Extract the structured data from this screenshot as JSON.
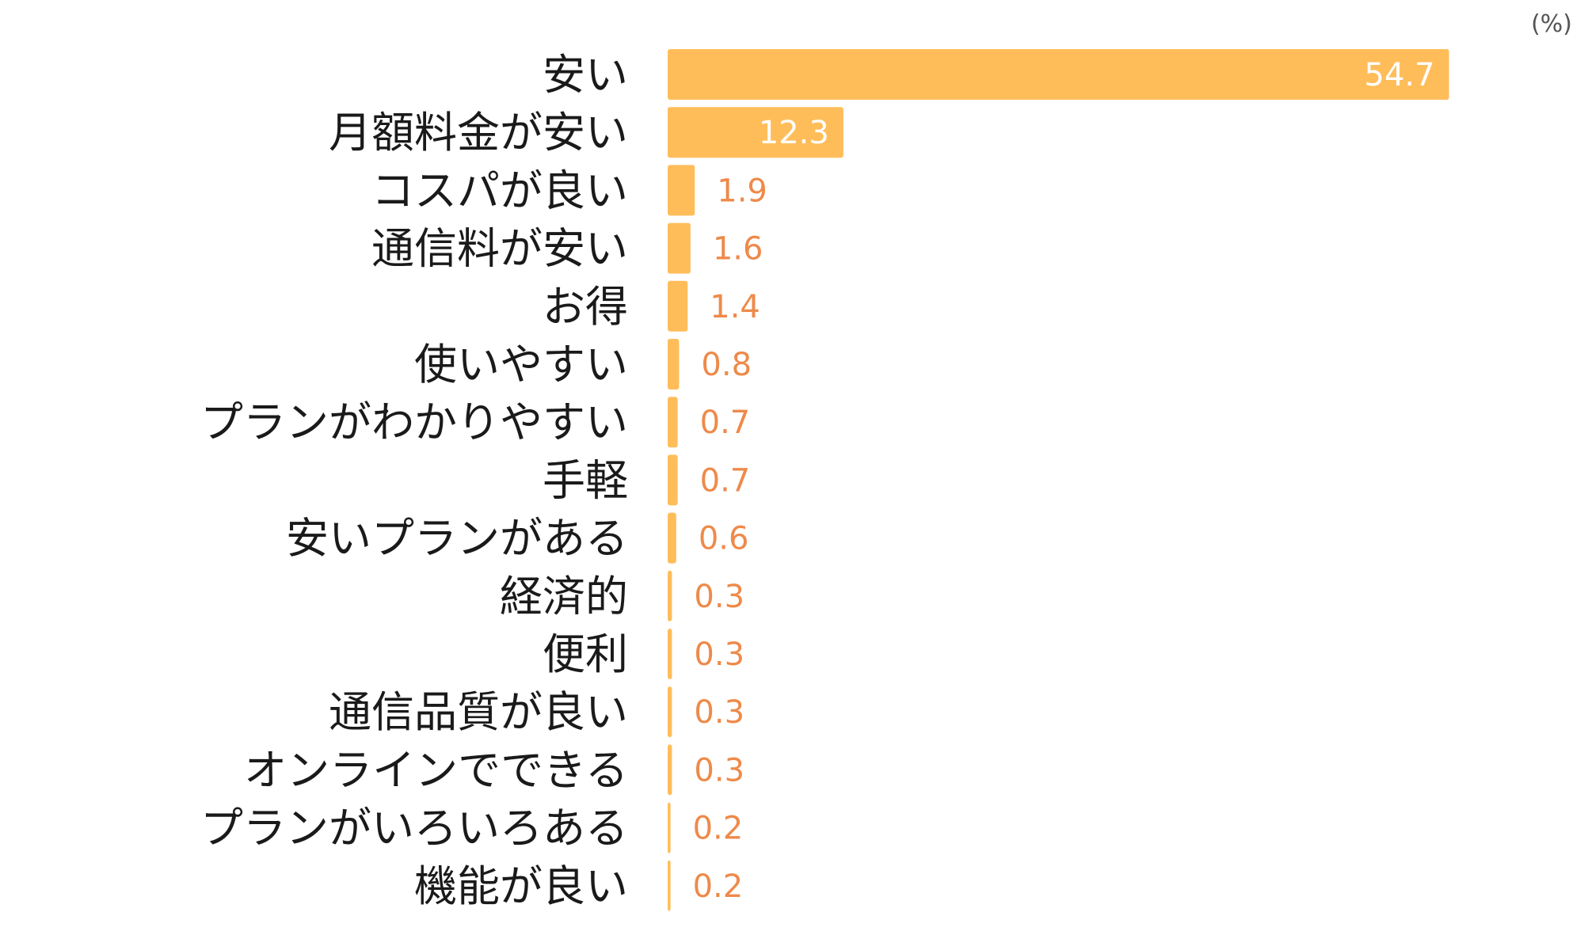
{
  "chart_data": {
    "type": "bar",
    "orientation": "horizontal",
    "unit": "(%)",
    "categories": [
      "安い",
      "月額料金が安い",
      "コスパが良い",
      "通信料が安い",
      "お得",
      "使いやすい",
      "プランがわかりやすい",
      "手軽",
      "安いプランがある",
      "経済的",
      "便利",
      "通信品質が良い",
      "オンラインでできる",
      "プランがいろいろある",
      "機能が良い"
    ],
    "values": [
      54.7,
      12.3,
      1.9,
      1.6,
      1.4,
      0.8,
      0.7,
      0.7,
      0.6,
      0.3,
      0.3,
      0.3,
      0.3,
      0.2,
      0.2
    ],
    "value_labels": [
      "54.7",
      "12.3",
      "1.9",
      "1.6",
      "1.4",
      "0.8",
      "0.7",
      "0.7",
      "0.6",
      "0.3",
      "0.3",
      "0.3",
      "0.3",
      "0.2",
      "0.2"
    ],
    "xlim": [
      0,
      55
    ],
    "grid": false,
    "legend": "none"
  },
  "colors": {
    "bar": "#ffbd5a",
    "value_outside": "#ee8a4a",
    "value_inside": "#ffffff",
    "category_text": "#1a1a1a"
  }
}
